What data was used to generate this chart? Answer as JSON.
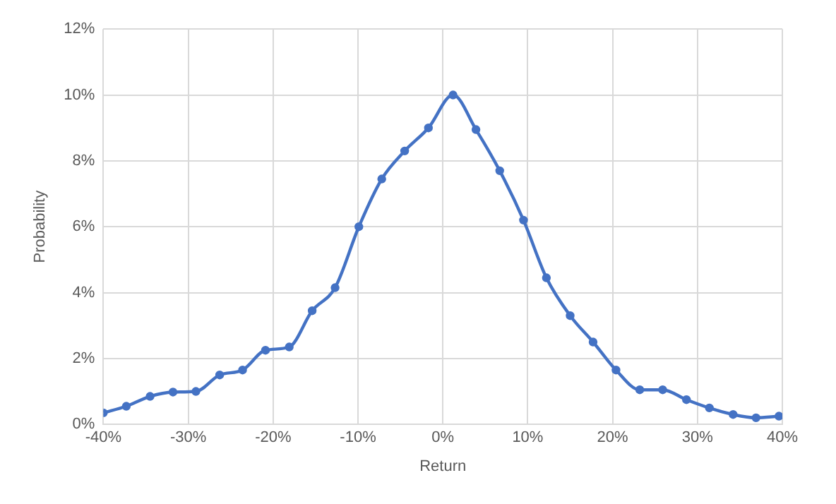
{
  "chart_data": {
    "type": "line",
    "xlabel": "Return",
    "ylabel": "Probability",
    "x": [
      -40,
      -37.3,
      -34.5,
      -31.8,
      -29.1,
      -26.3,
      -23.6,
      -20.9,
      -18.1,
      -15.4,
      -12.7,
      -9.9,
      -7.2,
      -4.5,
      -1.7,
      1.2,
      3.9,
      6.7,
      9.5,
      12.2,
      15,
      17.7,
      20.4,
      23.2,
      25.9,
      28.7,
      31.4,
      34.2,
      36.9,
      39.6
    ],
    "series": [
      {
        "color": "#4472c4",
        "values": [
          0.35,
          0.55,
          0.85,
          0.98,
          1.0,
          1.5,
          1.65,
          2.25,
          2.35,
          3.45,
          4.15,
          6.0,
          7.45,
          8.3,
          9.0,
          10.0,
          8.95,
          7.7,
          6.2,
          4.45,
          3.3,
          2.5,
          1.65,
          1.05,
          1.05,
          0.75,
          0.5,
          0.3,
          0.2,
          0.25
        ]
      }
    ],
    "xlim": [
      -40,
      40
    ],
    "xticks": [
      {
        "value": -40,
        "label": "-40%"
      },
      {
        "value": -30,
        "label": "-30%"
      },
      {
        "value": -20,
        "label": "-20%"
      },
      {
        "value": -10,
        "label": "-10%"
      },
      {
        "value": 0,
        "label": "0%"
      },
      {
        "value": 10,
        "label": "10%"
      },
      {
        "value": 20,
        "label": "20%"
      },
      {
        "value": 30,
        "label": "30%"
      },
      {
        "value": 40,
        "label": "40%"
      }
    ],
    "ylim": [
      0,
      12
    ],
    "yticks": [
      {
        "value": 0,
        "label": "0%"
      },
      {
        "value": 2,
        "label": "2%"
      },
      {
        "value": 4,
        "label": "4%"
      },
      {
        "value": 6,
        "label": "6%"
      },
      {
        "value": 8,
        "label": "8%"
      },
      {
        "value": 10,
        "label": "10%"
      },
      {
        "value": 12,
        "label": "12%"
      }
    ],
    "grid": true,
    "legend": false,
    "marker": "circle",
    "line_style": "solid"
  }
}
